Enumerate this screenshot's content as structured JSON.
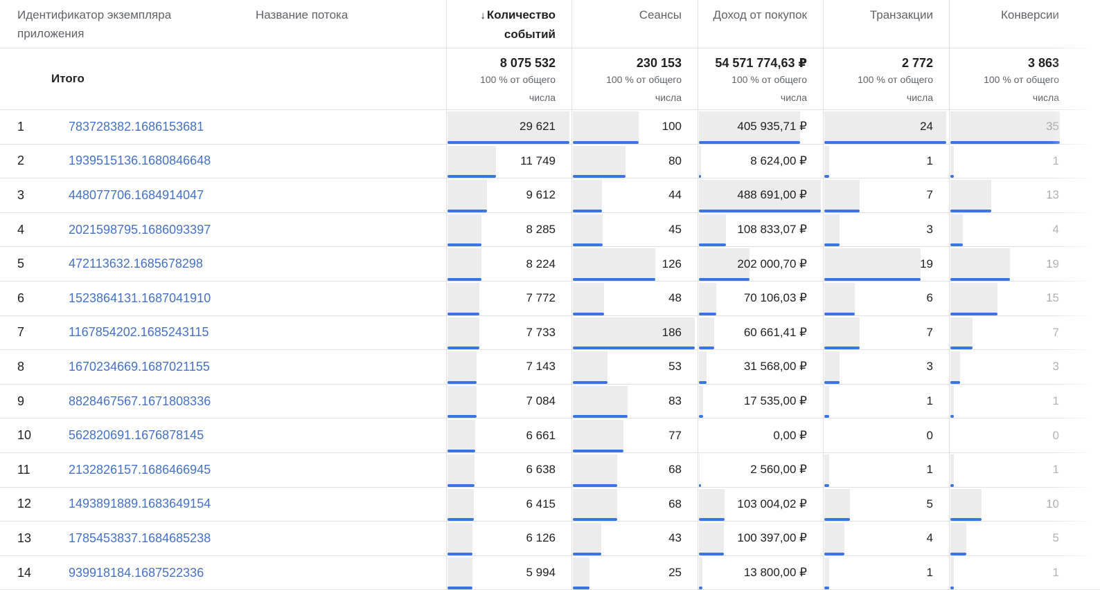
{
  "dimensions": {
    "app_instance_id": "Идентификатор экземпляра приложения",
    "stream_name": "Название потока"
  },
  "sort_arrow": "↓",
  "columns": [
    {
      "label": "Количество событий",
      "sorted": true,
      "total": "8 075 532",
      "total_pct": "100 % от общего числа",
      "max": 29621
    },
    {
      "label": "Сеансы",
      "sorted": false,
      "total": "230 153",
      "total_pct": "100 % от общего числа",
      "max": 186
    },
    {
      "label": "Доход от покупок",
      "sorted": false,
      "total": "54 571 774,63 ₽",
      "total_pct": "100 % от общего числа",
      "max": 488691
    },
    {
      "label": "Транзакции",
      "sorted": false,
      "total": "2 772",
      "total_pct": "100 % от общего числа",
      "max": 24
    },
    {
      "label": "Конверсии",
      "sorted": false,
      "total": "3 863",
      "total_pct": "100 % от общего числа",
      "max": 35
    }
  ],
  "total_label": "Итого",
  "rows": [
    {
      "n": "1",
      "id": "783728382.1686153681",
      "values": [
        "29 621",
        "100",
        "405 935,71 ₽",
        "24",
        "35"
      ],
      "raw": [
        29621,
        100,
        405935.71,
        24,
        35
      ]
    },
    {
      "n": "2",
      "id": "1939515136.1680846648",
      "values": [
        "11 749",
        "80",
        "8 624,00 ₽",
        "1",
        "1"
      ],
      "raw": [
        11749,
        80,
        8624,
        1,
        1
      ]
    },
    {
      "n": "3",
      "id": "448077706.1684914047",
      "values": [
        "9 612",
        "44",
        "488 691,00 ₽",
        "7",
        "13"
      ],
      "raw": [
        9612,
        44,
        488691,
        7,
        13
      ]
    },
    {
      "n": "4",
      "id": "2021598795.1686093397",
      "values": [
        "8 285",
        "45",
        "108 833,07 ₽",
        "3",
        "4"
      ],
      "raw": [
        8285,
        45,
        108833.07,
        3,
        4
      ]
    },
    {
      "n": "5",
      "id": "472113632.1685678298",
      "values": [
        "8 224",
        "126",
        "202 000,70 ₽",
        "19",
        "19"
      ],
      "raw": [
        8224,
        126,
        202000.7,
        19,
        19
      ]
    },
    {
      "n": "6",
      "id": "1523864131.1687041910",
      "values": [
        "7 772",
        "48",
        "70 106,03 ₽",
        "6",
        "15"
      ],
      "raw": [
        7772,
        48,
        70106.03,
        6,
        15
      ]
    },
    {
      "n": "7",
      "id": "1167854202.1685243115",
      "values": [
        "7 733",
        "186",
        "60 661,41 ₽",
        "7",
        "7"
      ],
      "raw": [
        7733,
        186,
        60661.41,
        7,
        7
      ]
    },
    {
      "n": "8",
      "id": "1670234669.1687021155",
      "values": [
        "7 143",
        "53",
        "31 568,00 ₽",
        "3",
        "3"
      ],
      "raw": [
        7143,
        53,
        31568,
        3,
        3
      ]
    },
    {
      "n": "9",
      "id": "8828467567.1671808336",
      "values": [
        "7 084",
        "83",
        "17 535,00 ₽",
        "1",
        "1"
      ],
      "raw": [
        7084,
        83,
        17535,
        1,
        1
      ]
    },
    {
      "n": "10",
      "id": "562820691.1676878145",
      "values": [
        "6 661",
        "77",
        "0,00 ₽",
        "0",
        "0"
      ],
      "raw": [
        6661,
        77,
        0,
        0,
        0
      ]
    },
    {
      "n": "11",
      "id": "2132826157.1686466945",
      "values": [
        "6 638",
        "68",
        "2 560,00 ₽",
        "1",
        "1"
      ],
      "raw": [
        6638,
        68,
        2560,
        1,
        1
      ]
    },
    {
      "n": "12",
      "id": "1493891889.1683649154",
      "values": [
        "6 415",
        "68",
        "103 004,02 ₽",
        "5",
        "10"
      ],
      "raw": [
        6415,
        68,
        103004.02,
        5,
        10
      ]
    },
    {
      "n": "13",
      "id": "1785453837.1684685238",
      "values": [
        "6 126",
        "43",
        "100 397,00 ₽",
        "4",
        "5"
      ],
      "raw": [
        6126,
        43,
        100397,
        4,
        5
      ]
    },
    {
      "n": "14",
      "id": "939918184.1687522336",
      "values": [
        "5 994",
        "25",
        "13 800,00 ₽",
        "1",
        "1"
      ],
      "raw": [
        5994,
        25,
        13800,
        1,
        1
      ]
    }
  ],
  "colors": {
    "link": "#4472c4",
    "bar_fill": "#ececec",
    "bar_line": "#3a74e0",
    "border": "#e0e0e0"
  }
}
